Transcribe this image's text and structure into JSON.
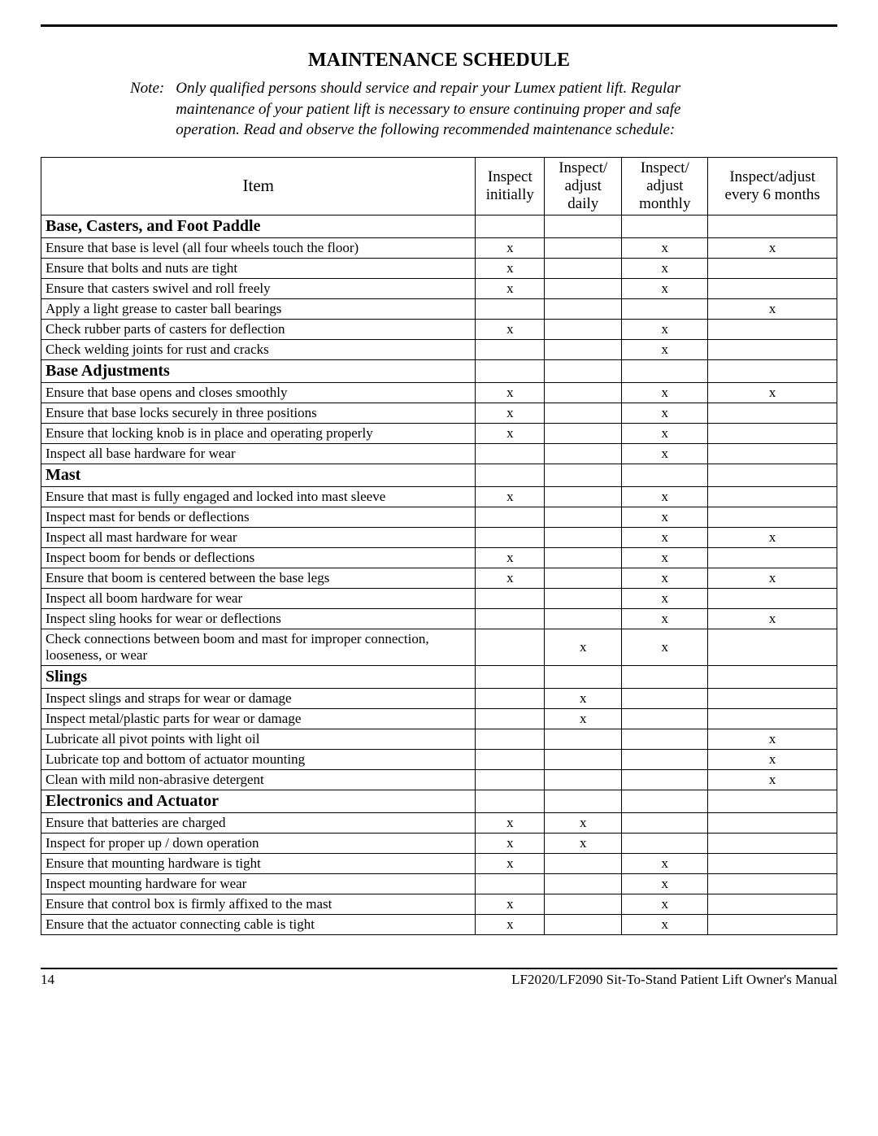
{
  "title": "MAINTENANCE SCHEDULE",
  "note_label": "Note:",
  "note_text": "Only qualified persons should service and repair your Lumex patient lift. Regular maintenance of your patient lift is necessary to ensure continuing proper and safe operation. Read and observe the following recommended maintenance schedule:",
  "columns": {
    "item": "Item",
    "c1": "Inspect initially",
    "c2": "Inspect/ adjust daily",
    "c3": "Inspect/ adjust monthly",
    "c4": "Inspect/adjust every 6 months"
  },
  "mark": "x",
  "rows": [
    {
      "section": true,
      "item": "Base, Casters, and Foot Paddle"
    },
    {
      "item": "Ensure that base is level (all four wheels touch the floor)",
      "c1": true,
      "c3": true,
      "c4": true
    },
    {
      "item": "Ensure that bolts and nuts are tight",
      "c1": true,
      "c3": true
    },
    {
      "item": "Ensure that casters swivel and roll freely",
      "c1": true,
      "c3": true
    },
    {
      "item": "Apply a light grease to caster ball bearings",
      "c4": true
    },
    {
      "item": "Check rubber parts of casters for deflection",
      "c1": true,
      "c3": true
    },
    {
      "item": "Check welding joints for rust and cracks",
      "c3": true
    },
    {
      "section": true,
      "item": "Base Adjustments"
    },
    {
      "item": "Ensure that base opens and closes smoothly",
      "c1": true,
      "c3": true,
      "c4": true
    },
    {
      "item": "Ensure that base locks securely in three positions",
      "c1": true,
      "c3": true
    },
    {
      "item": "Ensure that locking knob is in place and operating properly",
      "c1": true,
      "c3": true
    },
    {
      "item": "Inspect all base hardware for wear",
      "c3": true
    },
    {
      "section": true,
      "item": "Mast"
    },
    {
      "item": "Ensure that mast is fully engaged and locked into mast sleeve",
      "c1": true,
      "c3": true
    },
    {
      "item": "Inspect mast for bends or deflections",
      "c3": true
    },
    {
      "item": "Inspect all mast hardware for wear",
      "c3": true,
      "c4": true
    },
    {
      "item": "Inspect boom for bends or deflections",
      "c1": true,
      "c3": true
    },
    {
      "item": "Ensure that boom is centered between the base legs",
      "c1": true,
      "c3": true,
      "c4": true
    },
    {
      "item": "Inspect all boom hardware for wear",
      "c3": true
    },
    {
      "item": "Inspect sling hooks for wear or deflections",
      "c3": true,
      "c4": true
    },
    {
      "item": "Check connections between boom and mast for improper connection, looseness, or wear",
      "c2": true,
      "c3": true
    },
    {
      "section": true,
      "item": "Slings"
    },
    {
      "item": "Inspect slings and straps for wear or damage",
      "c2": true
    },
    {
      "item": "Inspect metal/plastic parts for wear or damage",
      "c2": true
    },
    {
      "item": "Lubricate all pivot points with light oil",
      "c4": true
    },
    {
      "item": "Lubricate top and bottom of actuator mounting",
      "c4": true
    },
    {
      "item": "Clean with mild non-abrasive detergent",
      "c4": true
    },
    {
      "section": true,
      "item": "Electronics and Actuator"
    },
    {
      "item": "Ensure that batteries are charged",
      "c1": true,
      "c2": true
    },
    {
      "item": "Inspect for proper up / down operation",
      "c1": true,
      "c2": true
    },
    {
      "item": "Ensure that mounting hardware is tight",
      "c1": true,
      "c3": true
    },
    {
      "item": "Inspect mounting hardware for wear",
      "c3": true
    },
    {
      "item": "Ensure that control box is firmly affixed to the mast",
      "c1": true,
      "c3": true
    },
    {
      "item": "Ensure that the actuator connecting cable is tight",
      "c1": true,
      "c3": true
    }
  ],
  "footer": {
    "page": "14",
    "doc": "LF2020/LF2090 Sit-To-Stand Patient Lift Owner's Manual"
  }
}
